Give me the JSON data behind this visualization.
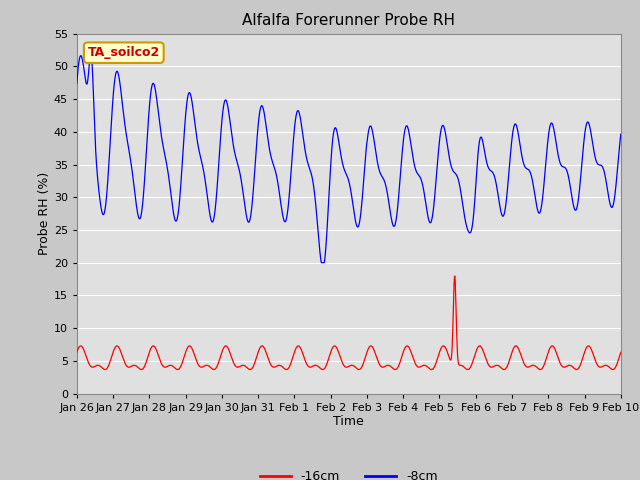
{
  "title": "Alfalfa Forerunner Probe RH",
  "xlabel": "Time",
  "ylabel": "Probe RH (%)",
  "ylim": [
    0,
    55
  ],
  "yticks": [
    0,
    5,
    10,
    15,
    20,
    25,
    30,
    35,
    40,
    45,
    50,
    55
  ],
  "x_tick_labels": [
    "Jan 26",
    "Jan 27",
    "Jan 28",
    "Jan 29",
    "Jan 30",
    "Jan 31",
    "Feb 1",
    "Feb 2",
    "Feb 3",
    "Feb 4",
    "Feb 5",
    "Feb 6",
    "Feb 7",
    "Feb 8",
    "Feb 9",
    "Feb 10"
  ],
  "annotation_label": "TA_soilco2",
  "annotation_bg": "#ffffcc",
  "annotation_border": "#cc9900",
  "annotation_text_color": "#cc0000",
  "line_blue_color": "#0000ff",
  "line_red_color": "#ff0000",
  "line_blue_label": "-8cm",
  "line_red_label": "-16cm",
  "fig_bg_color": "#c8c8c8",
  "plot_bg_color": "#e0e0e0",
  "grid_color": "#ffffff",
  "title_fontsize": 11,
  "axis_label_fontsize": 9,
  "tick_fontsize": 8
}
